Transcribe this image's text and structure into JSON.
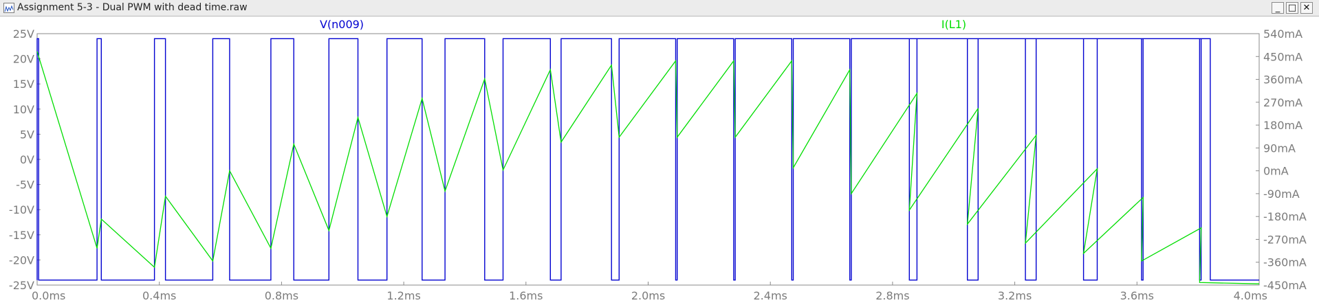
{
  "window": {
    "title": "Assignment 5-3 - Dual PWM with dead time.raw",
    "minimize_symbol": "_",
    "maximize_symbol": "□",
    "close_symbol": "✕",
    "icon": "waveform-viewer-icon"
  },
  "colors": {
    "voltage_trace": "#0000d0",
    "current_trace": "#00dd00",
    "axis_text": "#7b7b7b",
    "frame": "#8a8a8a",
    "background": "#ffffff"
  },
  "chart_data": {
    "type": "line",
    "title": "",
    "grid": false,
    "x_axis": {
      "unit": "ms",
      "range": [
        0.0,
        4.0
      ],
      "tick_values": [
        0.0,
        0.4,
        0.8,
        1.2,
        1.6,
        2.0,
        2.4,
        2.8,
        3.2,
        3.6,
        4.0
      ],
      "tick_labels": [
        "0.0ms",
        "0.4ms",
        "0.8ms",
        "1.2ms",
        "1.6ms",
        "2.0ms",
        "2.4ms",
        "2.8ms",
        "3.2ms",
        "3.6ms",
        "4.0ms"
      ]
    },
    "y_left": {
      "unit": "V",
      "range": [
        -25,
        25
      ],
      "tick_values": [
        25,
        20,
        15,
        10,
        5,
        0,
        -5,
        -10,
        -15,
        -20,
        -25
      ],
      "tick_labels": [
        "25V",
        "20V",
        "15V",
        "10V",
        "5V",
        "0V",
        "-5V",
        "-10V",
        "-15V",
        "-20V",
        "-25V"
      ]
    },
    "y_right": {
      "unit": "mA",
      "range": [
        -450,
        540
      ],
      "tick_values": [
        540,
        450,
        360,
        270,
        180,
        90,
        0,
        -90,
        -180,
        -270,
        -360,
        -450
      ],
      "tick_labels": [
        "540mA",
        "450mA",
        "360mA",
        "270mA",
        "180mA",
        "90mA",
        "0mA",
        "-90mA",
        "-180mA",
        "-270mA",
        "-360mA",
        "-450mA"
      ]
    },
    "series": [
      {
        "name": "V(n009)",
        "axis": "left",
        "high": 24,
        "low": -24,
        "high_intervals_ms": [
          [
            0.0,
            0.005
          ],
          [
            0.196,
            0.21
          ],
          [
            0.384,
            0.42
          ],
          [
            0.575,
            0.63
          ],
          [
            0.765,
            0.84
          ],
          [
            0.955,
            1.05
          ],
          [
            1.145,
            1.26
          ],
          [
            1.335,
            1.465
          ],
          [
            1.525,
            1.68
          ],
          [
            1.715,
            1.88
          ],
          [
            1.905,
            2.09
          ],
          [
            2.095,
            2.28
          ],
          [
            2.285,
            2.47
          ],
          [
            2.475,
            2.66
          ],
          [
            2.665,
            2.88
          ],
          [
            2.855,
            3.08
          ],
          [
            3.045,
            3.27
          ],
          [
            3.235,
            3.47
          ],
          [
            3.425,
            3.62
          ],
          [
            3.615,
            3.81
          ],
          [
            3.805,
            3.84
          ]
        ]
      },
      {
        "name": "I(L1)",
        "axis": "right",
        "unit": "mA",
        "points": [
          [
            0.0,
            470
          ],
          [
            0.196,
            -305
          ],
          [
            0.21,
            -190
          ],
          [
            0.384,
            -380
          ],
          [
            0.42,
            -100
          ],
          [
            0.575,
            -355
          ],
          [
            0.63,
            0
          ],
          [
            0.765,
            -305
          ],
          [
            0.84,
            105
          ],
          [
            0.955,
            -235
          ],
          [
            1.05,
            210
          ],
          [
            1.145,
            -180
          ],
          [
            1.26,
            285
          ],
          [
            1.335,
            -80
          ],
          [
            1.465,
            362
          ],
          [
            1.525,
            3
          ],
          [
            1.68,
            398
          ],
          [
            1.715,
            113
          ],
          [
            1.88,
            416
          ],
          [
            1.905,
            132
          ],
          [
            2.09,
            433
          ],
          [
            2.095,
            132
          ],
          [
            2.28,
            433
          ],
          [
            2.285,
            132
          ],
          [
            2.47,
            433
          ],
          [
            2.475,
            12
          ],
          [
            2.66,
            398
          ],
          [
            2.665,
            -90
          ],
          [
            2.88,
            305
          ],
          [
            2.855,
            -155
          ],
          [
            3.08,
            246
          ],
          [
            3.045,
            -210
          ],
          [
            3.27,
            140
          ],
          [
            3.235,
            -285
          ],
          [
            3.47,
            8
          ],
          [
            3.425,
            -325
          ],
          [
            3.62,
            -105
          ],
          [
            3.615,
            -355
          ],
          [
            3.81,
            -225
          ],
          [
            3.805,
            -440
          ],
          [
            4.0,
            -445
          ]
        ]
      }
    ]
  }
}
